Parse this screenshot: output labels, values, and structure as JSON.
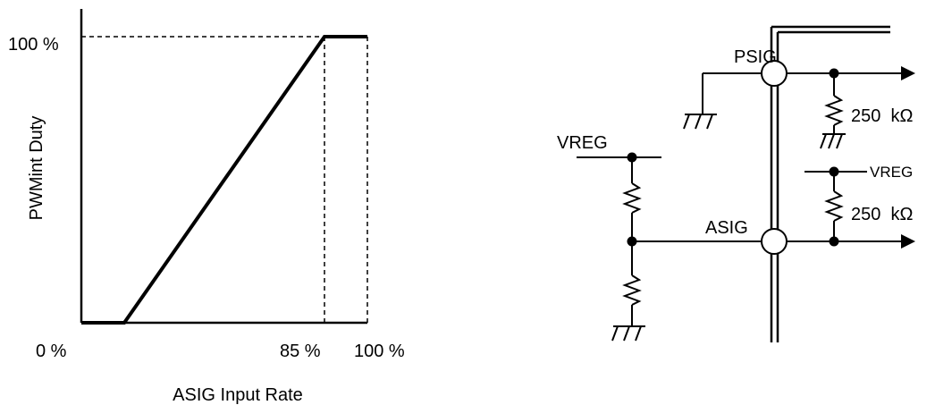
{
  "chart_data": {
    "type": "line",
    "xlabel": "ASIG Input Rate",
    "ylabel": "PWMint Duty",
    "x_ticks": [
      "0 %",
      "85 %",
      "100 %"
    ],
    "y_ticks": [
      "100 %"
    ],
    "series": [
      {
        "x": [
          0,
          15,
          85,
          100
        ],
        "y": [
          0,
          0,
          100,
          100
        ]
      }
    ],
    "xlim": [
      0,
      100
    ],
    "ylim": [
      0,
      100
    ],
    "reference_lines": [
      {
        "orientation": "horizontal",
        "style": "dashed",
        "at_y": 100
      },
      {
        "orientation": "vertical",
        "style": "dashed",
        "at_x": 85
      },
      {
        "orientation": "vertical",
        "style": "dashed",
        "at_x": 100
      }
    ]
  },
  "circuit": {
    "labels": {
      "psig": "PSIG",
      "asig": "ASIG",
      "vreg_left": "VREG",
      "vreg_right": "VREG",
      "res_top": "250  kΩ",
      "res_bottom": "250  kΩ"
    }
  }
}
